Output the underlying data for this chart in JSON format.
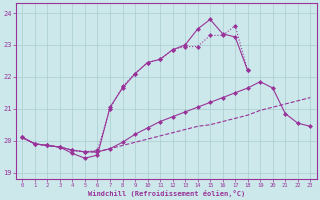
{
  "bg_color": "#cce8ea",
  "grid_color": "#aacdd0",
  "line_color": "#993399",
  "xlabel": "Windchill (Refroidissement éolien,°C)",
  "xlim": [
    -0.5,
    23.5
  ],
  "ylim": [
    18.8,
    24.3
  ],
  "yticks": [
    19,
    20,
    21,
    22,
    23,
    24
  ],
  "xticks": [
    0,
    1,
    2,
    3,
    4,
    5,
    6,
    7,
    8,
    9,
    10,
    11,
    12,
    13,
    14,
    15,
    16,
    17,
    18,
    19,
    20,
    21,
    22,
    23
  ],
  "series": [
    {
      "x": [
        0,
        1,
        2,
        3,
        4,
        5,
        6,
        7,
        8,
        9,
        10,
        11,
        12,
        13,
        14,
        15,
        16,
        17,
        18,
        19,
        20,
        21,
        22,
        23
      ],
      "y": [
        20.1,
        19.9,
        19.85,
        19.8,
        19.7,
        19.65,
        19.65,
        19.75,
        19.85,
        19.95,
        20.05,
        20.15,
        20.25,
        20.35,
        20.45,
        20.5,
        20.6,
        20.7,
        20.8,
        20.95,
        21.05,
        21.15,
        21.25,
        21.35
      ],
      "linestyle": "--",
      "marker": null,
      "lw": 0.8
    },
    {
      "x": [
        0,
        1,
        2,
        3,
        4,
        5,
        6,
        7,
        8,
        9,
        10,
        11,
        12,
        13,
        14,
        15,
        16,
        17,
        18,
        19,
        20,
        21,
        22,
        23
      ],
      "y": [
        20.1,
        19.9,
        19.85,
        19.8,
        19.7,
        19.65,
        19.65,
        19.75,
        19.95,
        20.2,
        20.4,
        20.6,
        20.75,
        20.9,
        21.05,
        21.2,
        21.35,
        21.5,
        21.65,
        21.85,
        21.65,
        20.85,
        20.55,
        20.45
      ],
      "linestyle": "-",
      "marker": "D",
      "lw": 0.8
    },
    {
      "x": [
        0,
        1,
        2,
        3,
        4,
        5,
        6,
        7,
        8,
        9,
        10,
        11,
        12,
        13,
        14,
        15,
        16,
        17,
        18
      ],
      "y": [
        20.1,
        19.9,
        19.85,
        19.8,
        19.7,
        19.65,
        19.7,
        21.0,
        21.7,
        22.1,
        22.45,
        22.55,
        22.85,
        22.95,
        22.95,
        23.3,
        23.3,
        23.6,
        22.2
      ],
      "linestyle": ":",
      "marker": "D",
      "lw": 0.8
    },
    {
      "x": [
        0,
        1,
        2,
        3,
        4,
        5,
        6,
        7,
        8,
        9,
        10,
        11,
        12,
        13,
        14,
        15,
        16,
        17,
        18
      ],
      "y": [
        20.1,
        19.9,
        19.85,
        19.8,
        19.6,
        19.45,
        19.55,
        21.05,
        21.65,
        22.1,
        22.45,
        22.55,
        22.85,
        23.0,
        23.5,
        23.8,
        23.35,
        23.25,
        22.2
      ],
      "linestyle": "-",
      "marker": "D",
      "lw": 0.8
    }
  ]
}
